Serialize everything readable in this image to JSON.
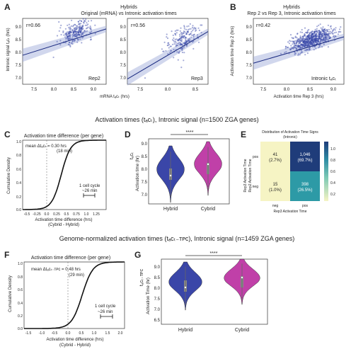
{
  "panel_labels": [
    "A",
    "B",
    "C",
    "D",
    "E",
    "F",
    "G"
  ],
  "section_titles": {
    "top": "Activation times (tₐᴄₜ), Intronic signal (n=1500 ZGA genes)",
    "bottom": "Genome-normalized activation times (tₐᴄₜ₋ᴛᴘᴄ), Intronic signal (n=1459 ZGA genes)"
  },
  "panelA": {
    "title": "Hybrids",
    "subtitle": "Original (mRNA) vs Intronic activation times",
    "ylabel": "Intronic signal tₐᴄₜ (hrs)",
    "xlabel": "mRNA tₐᴄₜ (hrs)",
    "left": {
      "r": "r=0.66",
      "label": "Rep2",
      "xticks": [
        "7.5",
        "8.0",
        "8.5",
        "9.0"
      ],
      "yticks": [
        "9.0",
        "8.5",
        "8.0",
        "7.5",
        "7.0"
      ]
    },
    "right": {
      "r": "r=0.56",
      "label": "Rep3",
      "xticks": [
        "7.5",
        "8.0",
        "8.5"
      ],
      "yticks": [
        "9.0",
        "8.5",
        "8.0",
        "7.5",
        "7.0"
      ]
    }
  },
  "panelB": {
    "title": "Hybrids",
    "subtitle": "Rep 2 vs Rep 3, Intronic activation times",
    "r": "r=0.42",
    "label": "Intronic tₐᴄₜ",
    "ylabel": "Activation time Rep 2 (hrs)",
    "xlabel": "Activation time Rep 3 (hrs)",
    "xticks": [
      "7.5",
      "8.0",
      "8.5",
      "9.0"
    ],
    "yticks": [
      "9.0",
      "8.5",
      "8.0",
      "7.5",
      "7.0"
    ]
  },
  "panelC": {
    "title": "Activation time difference (per gene)",
    "annotation1": "mean Δtₐᴄₜ = 0.30 hrs",
    "annotation2": "(18 min)",
    "cycle1": "1 cell cycle",
    "cycle2": "~26 min",
    "ylabel": "Cumulative Density",
    "xlabel1": "Activation time difference (hrs)",
    "xlabel2": "(Cybrid - Hybrid)",
    "xticks": [
      "-0.5",
      "-0.25",
      "0.0",
      "0.25",
      "0.5",
      "0.75",
      "1.0",
      "1.25"
    ],
    "yticks": [
      "1.0",
      "0.8",
      "0.6",
      "0.4",
      "0.2",
      "0.0"
    ]
  },
  "panelD": {
    "ylabel": "Activation time (hr)",
    "ylabel_top": "tₐᴄₜ",
    "sig": "****",
    "categories": [
      "Hybrid",
      "Cybrid"
    ],
    "yticks": [
      "9.0",
      "8.5",
      "8.0",
      "7.5",
      "7.0"
    ]
  },
  "panelE": {
    "title1": "Distribution of Activation Time Signs",
    "title2": "(Intronic)",
    "ylabel1": "Rep3 Activation Time",
    "ylabel2": "Rep2 Activation Time",
    "xlabel": "Rep3 Activation Time",
    "col_labels": [
      "neg",
      "pos"
    ],
    "row_labels": [
      "pos",
      "neg"
    ],
    "cells": [
      [
        "41",
        "(2.7%)"
      ],
      [
        "1,046",
        "(69.7%)"
      ],
      [
        "15",
        "(1.0%)"
      ],
      [
        "398",
        "(26.5%)"
      ]
    ],
    "colorbar_ticks": [
      "1.0",
      "0.8",
      "0.6",
      "0.4",
      "0.2"
    ],
    "colors": {
      "low": "#f6f4c4",
      "high": "#1f3c7a",
      "mid": "#2d8ca4"
    }
  },
  "panelF": {
    "title": "Activation time difference (per gene)",
    "annotation1": "mean Δtₐᴄₜ₋ᴛᴘᴄ = 0.48 hrs",
    "annotation2": "(29 min)",
    "cycle1": "1 cell cycle",
    "cycle2": "~26 min",
    "ylabel": "Cumulative Density",
    "xlabel1": "Activation time difference (hrs)",
    "xlabel2": "(Cybrid - Hybrid)",
    "xticks": [
      "-1.5",
      "-1.0",
      "-0.5",
      "0.0",
      "0.5",
      "1.0",
      "1.5",
      "2.0"
    ],
    "yticks": [
      "1.0",
      "0.8",
      "0.6",
      "0.4",
      "0.2",
      "0.0"
    ]
  },
  "panelG": {
    "ylabel": "Activation Time (hr)",
    "ylabel_top": "tₐᴄₜ₋ᴛᴘᴄ",
    "sig": "****",
    "categories": [
      "Hybrid",
      "Cybrid"
    ],
    "yticks": [
      "9.0",
      "8.5",
      "8.0",
      "7.5",
      "7.0",
      "6.5"
    ]
  },
  "chart_data": [
    {
      "type": "scatter",
      "panel": "A-Rep2",
      "r": 0.66,
      "xlim": [
        7.0,
        9.5
      ],
      "ylim": [
        6.8,
        9.3
      ],
      "fit": [
        [
          7.0,
          7.9
        ],
        [
          9.5,
          8.9
        ]
      ]
    },
    {
      "type": "scatter",
      "panel": "A-Rep3",
      "r": 0.56,
      "xlim": [
        7.0,
        8.8
      ],
      "ylim": [
        6.8,
        9.3
      ],
      "fit": [
        [
          7.0,
          7.0
        ],
        [
          8.8,
          8.8
        ]
      ]
    },
    {
      "type": "scatter",
      "panel": "B",
      "r": 0.42,
      "xlim": [
        7.0,
        9.4
      ],
      "ylim": [
        6.8,
        9.3
      ],
      "fit": [
        [
          7.0,
          7.6
        ],
        [
          9.4,
          8.6
        ]
      ]
    },
    {
      "type": "line",
      "panel": "C",
      "xlim": [
        -0.6,
        1.35
      ],
      "ylim": [
        0,
        1
      ],
      "mean_shift": 0.3
    },
    {
      "type": "violin",
      "panel": "D",
      "categories": [
        "Hybrid",
        "Cybrid"
      ],
      "medians": [
        8.1,
        8.5
      ]
    },
    {
      "type": "heatmap",
      "panel": "E",
      "rows": [
        "pos",
        "neg"
      ],
      "cols": [
        "neg",
        "pos"
      ],
      "values": [
        [
          41,
          1046
        ],
        [
          15,
          398
        ]
      ],
      "percent": [
        [
          2.7,
          69.7
        ],
        [
          1.0,
          26.5
        ]
      ]
    },
    {
      "type": "line",
      "panel": "F",
      "xlim": [
        -1.6,
        2.0
      ],
      "ylim": [
        0,
        1
      ],
      "mean_shift": 0.48
    },
    {
      "type": "violin",
      "panel": "G",
      "categories": [
        "Hybrid",
        "Cybrid"
      ],
      "medians": [
        7.85,
        8.4
      ]
    }
  ]
}
